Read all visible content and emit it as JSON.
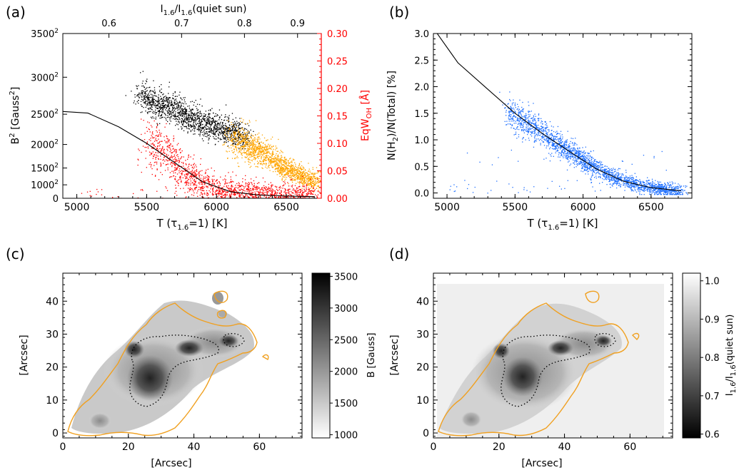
{
  "colors": {
    "black_points": "#000000",
    "orange_points": "#ffa500",
    "red_points": "#ff0000",
    "blue_points": "#1e6fff",
    "contour": "#f0a020",
    "right_axis": "#ff0000"
  },
  "chart_data": [
    {
      "type": "scatter",
      "panel_label": "(a)",
      "xlabel": "T (τ1.6=1) [K]",
      "ylabel": "B² [Gauss²]",
      "ylabel_right": "EqW_OH [Å]",
      "xlabel_top": "I1.6/I1.6(quiet sun)",
      "xlim": [
        4900,
        6750
      ],
      "ylim": [
        0,
        12250000
      ],
      "ylim_right": [
        0,
        0.3
      ],
      "x_ticks": [
        "5000",
        "5500",
        "6000",
        "6500"
      ],
      "x_tick_values": [
        5000,
        5500,
        6000,
        6500
      ],
      "y_ticks": [
        "0",
        "1000²",
        "1500²",
        "2000²",
        "2500²",
        "3000²",
        "3500²"
      ],
      "y_tick_values_gauss": [
        0,
        1000,
        1500,
        2000,
        2500,
        3000,
        3500
      ],
      "y_right_ticks": [
        "0.00",
        "0.05",
        "0.10",
        "0.15",
        "0.20",
        "0.25",
        "0.30"
      ],
      "x_top_ticks": [
        "0.6",
        "0.7",
        "0.8",
        "0.9"
      ],
      "x_top_tick_temps": [
        5230,
        5750,
        6200,
        6580
      ],
      "series": [
        {
          "color": "black",
          "axis": "left",
          "cloud": [
            [
              5450,
              2750
            ],
            [
              5650,
              2600
            ],
            [
              5850,
              2400
            ],
            [
              6000,
              2300
            ],
            [
              6200,
              2150
            ]
          ]
        },
        {
          "color": "orange",
          "axis": "left",
          "cloud": [
            [
              6100,
              2100
            ],
            [
              6300,
              1900
            ],
            [
              6450,
              1600
            ],
            [
              6600,
              1300
            ],
            [
              6700,
              1150
            ]
          ]
        },
        {
          "color": "red",
          "axis": "right",
          "cloud": [
            [
              5500,
              0.1
            ],
            [
              5650,
              0.08
            ],
            [
              5800,
              0.04
            ],
            [
              6000,
              0.015
            ],
            [
              6400,
              0.005
            ],
            [
              6700,
              0.003
            ]
          ]
        }
      ],
      "line": {
        "x": [
          4900,
          5080,
          5300,
          5500,
          5700,
          5900,
          6100,
          6300,
          6500,
          6700
        ],
        "y_right": [
          0.158,
          0.155,
          0.13,
          0.1,
          0.065,
          0.03,
          0.012,
          0.006,
          0.004,
          0.003
        ]
      }
    },
    {
      "type": "scatter",
      "panel_label": "(b)",
      "xlabel": "T (τ1.6=1) [K]",
      "ylabel": "N(H2)/N(Total) [%]",
      "xlim": [
        4900,
        6800
      ],
      "ylim": [
        -0.1,
        3.0
      ],
      "x_ticks": [
        "5000",
        "5500",
        "6000",
        "6500"
      ],
      "x_tick_values": [
        5000,
        5500,
        6000,
        6500
      ],
      "y_ticks": [
        "0.0",
        "0.5",
        "1.0",
        "1.5",
        "2.0",
        "2.5",
        "3.0"
      ],
      "y_tick_values": [
        0.0,
        0.5,
        1.0,
        1.5,
        2.0,
        2.5,
        3.0
      ],
      "series": [
        {
          "color": "blue",
          "cloud": [
            [
              5450,
              1.5
            ],
            [
              5600,
              1.3
            ],
            [
              5800,
              0.95
            ],
            [
              6000,
              0.62
            ],
            [
              6200,
              0.33
            ],
            [
              6400,
              0.15
            ],
            [
              6600,
              0.07
            ],
            [
              6720,
              0.05
            ]
          ]
        }
      ],
      "line": {
        "x": [
          4900,
          5080,
          5300,
          5500,
          5700,
          5900,
          6100,
          6300,
          6500,
          6720
        ],
        "y": [
          3.1,
          2.45,
          1.95,
          1.5,
          1.12,
          0.78,
          0.45,
          0.22,
          0.1,
          0.04
        ]
      }
    },
    {
      "type": "heatmap",
      "panel_label": "(c)",
      "xlabel": "[Arcsec]",
      "ylabel": "[Arcsec]",
      "xlim": [
        0,
        73
      ],
      "ylim": [
        -1.5,
        48.5
      ],
      "x_ticks": [
        "0",
        "20",
        "40",
        "60"
      ],
      "x_tick_values": [
        0,
        20,
        40,
        60
      ],
      "y_ticks": [
        "0",
        "10",
        "20",
        "30",
        "40"
      ],
      "y_tick_values": [
        0,
        10,
        20,
        30,
        40
      ],
      "colorbar": {
        "label": "B [Gauss]",
        "ticks": [
          "3500",
          "3000",
          "2500",
          "2000",
          "1500",
          "1000"
        ],
        "range": [
          950,
          3550
        ],
        "direction": "white-to-black"
      }
    },
    {
      "type": "heatmap",
      "panel_label": "(d)",
      "xlabel": "[Arcsec]",
      "ylabel": "[Arcsec]",
      "xlim": [
        0,
        73
      ],
      "ylim": [
        -1.5,
        48.5
      ],
      "x_ticks": [
        "0",
        "20",
        "40",
        "60"
      ],
      "x_tick_values": [
        0,
        20,
        40,
        60
      ],
      "y_ticks": [
        "0",
        "10",
        "20",
        "30",
        "40"
      ],
      "y_tick_values": [
        0,
        10,
        20,
        30,
        40
      ],
      "colorbar": {
        "label": "I1.6/I1.6(quiet sun)",
        "ticks": [
          "1.0",
          "0.9",
          "0.8",
          "0.7",
          "0.6"
        ],
        "range": [
          0.59,
          1.02
        ],
        "direction": "black-to-white"
      }
    }
  ]
}
